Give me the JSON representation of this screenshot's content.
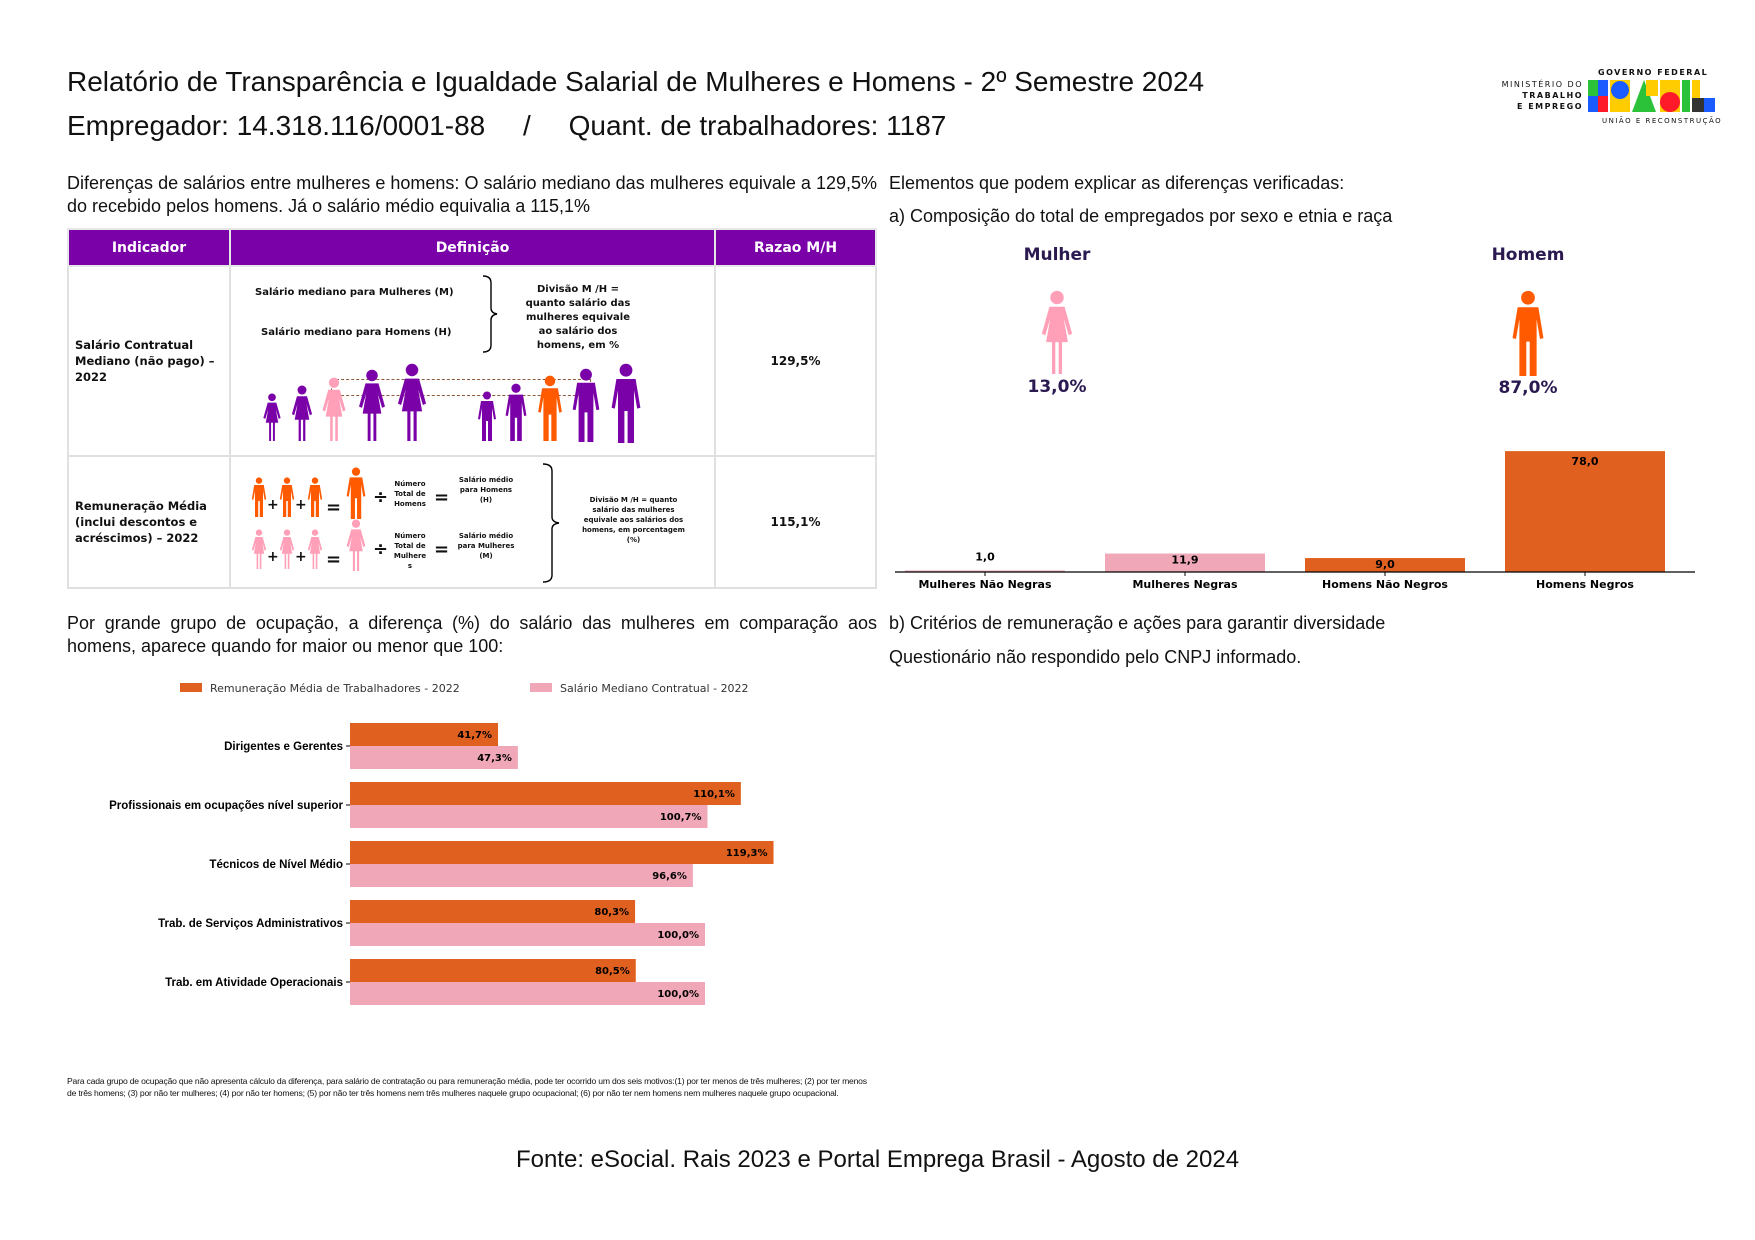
{
  "header": {
    "title": "Relatório de Transparência e Igualdade Salarial de Mulheres e Homens - 2º Semestre 2024",
    "employer": "Empregador: 14.318.116/0001-88",
    "separator": "/",
    "workers": "Quant. de trabalhadores: 1187"
  },
  "logo": {
    "ministry_line1": "MINISTÉRIO DO",
    "ministry_line2": "TRABALHO",
    "ministry_line3": "E EMPREGO",
    "gov_top": "GOVERNO FEDERAL",
    "gov_word": "BRASIL",
    "gov_bottom": "UNIÃO E RECONSTRUÇÃO"
  },
  "intro": "Diferenças de salários entre mulheres e homens: O salário mediano das mulheres equivale a 129,5% do recebido pelos homens. Já o salário médio equivalia a 115,1%",
  "table": {
    "headers": [
      "Indicador",
      "Definição",
      "Razao M/H"
    ],
    "rows": [
      {
        "indicator": "Salário Contratual Mediano (não pago) – 2022",
        "def_women": "Salário mediano para Mulheres (M)",
        "def_men": "Salário mediano para Homens (H)",
        "def_division": "Divisão M /H = quanto salário das mulheres equivale ao salário dos homens, em %",
        "ratio": "129,5%"
      },
      {
        "indicator": "Remuneração Média (inclui descontos e acréscimos) – 2022",
        "men_count": "Número Total de Homens",
        "men_result": "Salário médio para Homens (H)",
        "women_count": "Número Total de Mulhere s",
        "women_result": "Salário médio para Mulheres (M)",
        "def_division": "Divisão M /H = quanto salário das mulheres equivale aos salários dos homens, em porcentagem (%)",
        "ratio": "115,1%"
      }
    ]
  },
  "right": {
    "heading": "Elementos que podem explicar as diferenças verificadas:",
    "section_a": "a) Composição do total de empregados por sexo e etnia e raça",
    "woman_label": "Mulher",
    "woman_pct": "13,0%",
    "man_label": "Homem",
    "man_pct": "87,0%",
    "section_b": "b) Critérios de remuneração e ações para garantir diversidade",
    "questionnaire": "Questionário não respondido pelo CNPJ informado."
  },
  "occupation_intro": "Por grande grupo de ocupação, a diferença (%) do salário das mulheres em comparação aos homens, aparece quando for maior ou menor que 100:",
  "chart_data": [
    {
      "type": "bar",
      "categories": [
        "Mulheres Não Negras",
        "Mulheres Negras",
        "Homens Não Negros",
        "Homens Negros"
      ],
      "values": [
        1.0,
        11.9,
        9.0,
        78.0
      ],
      "labels": [
        "1,0",
        "11,9",
        "9,0",
        "78,0"
      ],
      "colors": [
        "#f0a8b8",
        "#f0a8b8",
        "#e06020",
        "#e06020"
      ],
      "grid": false
    },
    {
      "type": "bar",
      "orientation": "horizontal",
      "categories": [
        "Dirigentes e Gerentes",
        "Profissionais em ocupações nível superior",
        "Técnicos de Nível Médio",
        "Trab. de Serviços Administrativos",
        "Trab. em Atividade Operacionais"
      ],
      "series": [
        {
          "name": "Remuneração Média de Trabalhadores - 2022",
          "color": "#e06020",
          "values": [
            41.7,
            110.1,
            119.3,
            80.3,
            80.5
          ],
          "labels": [
            "41,7%",
            "110,1%",
            "119,3%",
            "80,3%",
            "80,5%"
          ]
        },
        {
          "name": "Salário Mediano Contratual - 2022",
          "color": "#f0a8b8",
          "values": [
            47.3,
            100.7,
            96.6,
            100.0,
            100.0
          ],
          "labels": [
            "47,3%",
            "100,7%",
            "96,6%",
            "100,0%",
            "100,0%"
          ]
        }
      ],
      "legend": "top",
      "grid": false
    }
  ],
  "footnote": "Para cada grupo de ocupação que não apresenta cálculo da diferença, para salário de contratação ou para remuneração média, pode ter ocorrido um dos seis motivos:(1) por ter menos de três mulheres; (2) por ter menos de três homens; (3) por não ter mulheres; (4) por não ter homens; (5) por não ter três homens nem três mulheres naquele grupo ocupacional; (6) por não ter nem homens nem mulheres naquele grupo ocupacional.",
  "source": "Fonte: eSocial. Rais 2023 e Portal Emprega Brasil - Agosto de 2024",
  "colors": {
    "purple": "#7a00a8",
    "orange": "#e06020",
    "pink": "#f0a8b8",
    "icon_orange": "#ff5a00",
    "icon_pink": "#ffa0b8",
    "dark_navy": "#2a1a50"
  }
}
